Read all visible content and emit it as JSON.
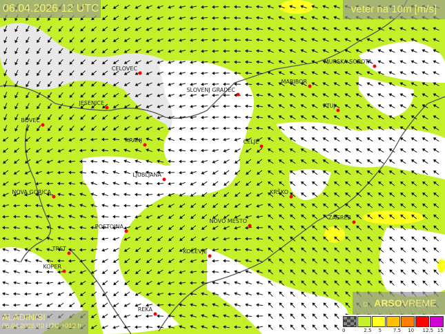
{
  "header": {
    "datetime": "06.04.2026 12 UTC",
    "parameter": "veter na 10m [m/s]"
  },
  "model": {
    "name": "ALADIN/SI",
    "run": "06.04.2026 00 UTC +012 h"
  },
  "logo": {
    "text_bold": "ARSO",
    "text_light": "VREME",
    "icon": "weather-sun-icon"
  },
  "legend": {
    "labels": [
      "0",
      "2.5",
      "5",
      "7.5",
      "10",
      "12.5",
      "15"
    ],
    "colors": [
      "#555555",
      "#c4f02a",
      "#ffff20",
      "#ffc000",
      "#ff7f00",
      "#ff0000",
      "#d000d0"
    ]
  },
  "colors": {
    "calm": "#ffffff",
    "weak": "#c4f02a",
    "moderate": "#ffff20",
    "city_dot": "#ff0000"
  },
  "cities": [
    {
      "name": "CELOVEC"
    },
    {
      "name": "MURSKA SOBOTA"
    },
    {
      "name": "MARIBOR"
    },
    {
      "name": "SLOVENJ GRADEC"
    },
    {
      "name": "JESENICE"
    },
    {
      "name": "PTUJ"
    },
    {
      "name": "BOVEC"
    },
    {
      "name": "KRANJ"
    },
    {
      "name": "CELJE"
    },
    {
      "name": "LJUBLJANA"
    },
    {
      "name": "NOVA GORICA"
    },
    {
      "name": "KRŠKO"
    },
    {
      "name": "ZAGREB"
    },
    {
      "name": "POSTOJNA"
    },
    {
      "name": "NOVO MESTO"
    },
    {
      "name": "TRST"
    },
    {
      "name": "KOČEVJE"
    },
    {
      "name": "KOPER"
    },
    {
      "name": "REKA"
    }
  ]
}
